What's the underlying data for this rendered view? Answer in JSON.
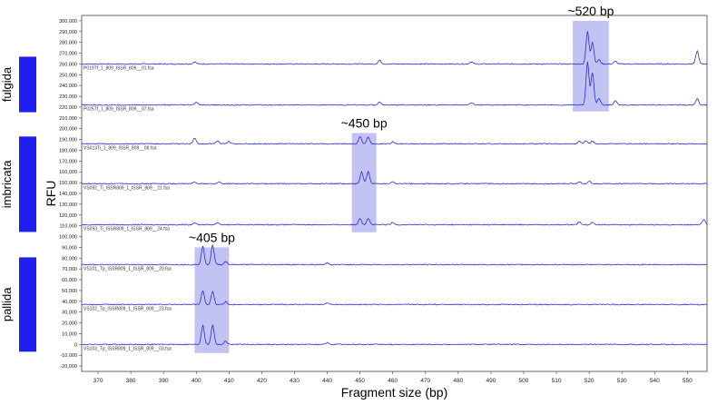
{
  "chart_data": {
    "type": "line",
    "xlabel": "Fragment size (bp)",
    "ylabel": "RFU",
    "xlim": [
      365,
      556
    ],
    "ylim": [
      -25000,
      305000
    ],
    "x_ticks": [
      370,
      380,
      390,
      400,
      410,
      420,
      430,
      440,
      450,
      460,
      470,
      480,
      490,
      500,
      510,
      520,
      530,
      540,
      550
    ],
    "y_ticks": [
      -20000,
      -10000,
      0,
      10000,
      20000,
      30000,
      40000,
      50000,
      60000,
      70000,
      80000,
      90000,
      100000,
      110000,
      120000,
      130000,
      140000,
      150000,
      160000,
      170000,
      180000,
      190000,
      200000,
      210000,
      220000,
      230000,
      240000,
      250000,
      260000,
      270000,
      280000,
      290000,
      300000
    ],
    "y_tick_labels": [
      "-20,000",
      "-10,000",
      "0",
      "10,000",
      "20,000",
      "30,000",
      "40,000",
      "50,000",
      "60,000",
      "70,000",
      "80,000",
      "90,000",
      "100,000",
      "110,000",
      "120,000",
      "130,000",
      "140,000",
      "150,000",
      "160,000",
      "170,000",
      "180,000",
      "190,000",
      "200,000",
      "210,000",
      "220,000",
      "230,000",
      "240,000",
      "250,000",
      "260,000",
      "270,000",
      "280,000",
      "290,000",
      "300,000"
    ],
    "grid": false,
    "line_color": "#2b2bd9",
    "series": [
      {
        "name": "P019Tf_1_809_ISSR_809__01.fsa",
        "baseline": 260000,
        "peaks": [
          [
            399.5,
            2000
          ],
          [
            456,
            3500
          ],
          [
            484,
            2000
          ],
          [
            519.5,
            30000
          ],
          [
            521,
            20000
          ],
          [
            523,
            4000
          ],
          [
            528,
            2500
          ],
          [
            553,
            12000
          ]
        ]
      },
      {
        "name": "P025Tf_1_809_ISSR_809__07.fsa",
        "baseline": 222000,
        "peaks": [
          [
            400,
            2500
          ],
          [
            456,
            3000
          ],
          [
            484,
            2000
          ],
          [
            519.5,
            40000
          ],
          [
            521,
            30000
          ],
          [
            523,
            6000
          ],
          [
            528,
            4000
          ],
          [
            553,
            6000
          ]
        ]
      },
      {
        "name": "VS013Ti_1_809_ISSR_809__08.fsa",
        "baseline": 186000,
        "peaks": [
          [
            399.5,
            5500
          ],
          [
            406.5,
            3000
          ],
          [
            410,
            2000
          ],
          [
            450,
            6500
          ],
          [
            452.5,
            6000
          ],
          [
            460,
            2000
          ],
          [
            517,
            2500
          ],
          [
            519,
            3000
          ],
          [
            521,
            2500
          ]
        ]
      },
      {
        "name": "VS092_Ti_ISSR809_1_ISSR_809__21.fsa",
        "baseline": 149000,
        "peaks": [
          [
            399.5,
            1500
          ],
          [
            407,
            1500
          ],
          [
            450.5,
            11000
          ],
          [
            452.5,
            11000
          ],
          [
            460,
            2000
          ],
          [
            517,
            2000
          ],
          [
            520,
            2500
          ]
        ]
      },
      {
        "name": "VS093_Ti_ISSR809_1_ISSR_809__24.fsa",
        "baseline": 111000,
        "peaks": [
          [
            399.5,
            2000
          ],
          [
            406.5,
            2000
          ],
          [
            450,
            6000
          ],
          [
            452.5,
            6000
          ],
          [
            460,
            2000
          ],
          [
            517,
            2500
          ],
          [
            521,
            2500
          ],
          [
            555,
            5000
          ]
        ]
      },
      {
        "name": "VS101_Tp_ISSR809_1_ISSR_809__20.fsa",
        "baseline": 74000,
        "peaks": [
          [
            402,
            17000
          ],
          [
            405,
            18000
          ],
          [
            409,
            3000
          ],
          [
            440,
            1500
          ]
        ]
      },
      {
        "name": "VS102_Tp_ISSR809_1_ISSR_809__23.fsa",
        "baseline": 37000,
        "peaks": [
          [
            402,
            13000
          ],
          [
            405,
            12000
          ],
          [
            409,
            2500
          ],
          [
            440,
            1500
          ]
        ]
      },
      {
        "name": "VS103_Tp_ISSR809_1_ISSR_809__03.fsa",
        "baseline": 0,
        "peaks": [
          [
            402,
            18000
          ],
          [
            405,
            18000
          ],
          [
            409,
            3000
          ],
          [
            440,
            1500
          ]
        ]
      }
    ],
    "highlights": [
      {
        "label": "~520 bp",
        "x": [
          515,
          526
        ],
        "y": [
          216000,
          300000
        ]
      },
      {
        "label": "~450 bp",
        "x": [
          447.5,
          455
        ],
        "y": [
          104000,
          196000
        ]
      },
      {
        "label": "~405 bp",
        "x": [
          399.5,
          410
        ],
        "y": [
          -8000,
          90000
        ]
      }
    ],
    "highlight_color": "#b3b3f0",
    "groups": [
      {
        "label": "fulgida",
        "series": [
          0,
          1
        ]
      },
      {
        "label": "imbricata",
        "series": [
          2,
          3,
          4
        ]
      },
      {
        "label": "pallida",
        "series": [
          5,
          6,
          7
        ]
      }
    ],
    "group_bar_color": "#1f1ff0"
  }
}
